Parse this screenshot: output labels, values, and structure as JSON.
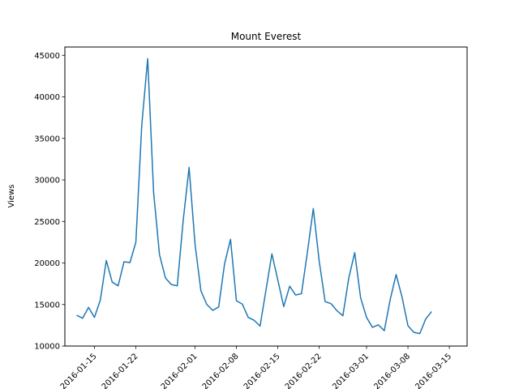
{
  "chart_data": {
    "type": "line",
    "title": "Mount Everest",
    "xlabel": "",
    "ylabel": "Views",
    "grid": false,
    "x_start": "2016-01-12",
    "xlim": [
      "2016-01-10",
      "2016-03-18"
    ],
    "ylim": [
      10000,
      46000
    ],
    "x_ticks": [
      {
        "date": "2016-01-15",
        "label": "2016-01-15"
      },
      {
        "date": "2016-01-22",
        "label": "2016-01-22"
      },
      {
        "date": "2016-02-01",
        "label": "2016-02-01"
      },
      {
        "date": "2016-02-08",
        "label": "2016-02-08"
      },
      {
        "date": "2016-02-15",
        "label": "2016-02-15"
      },
      {
        "date": "2016-02-22",
        "label": "2016-02-22"
      },
      {
        "date": "2016-03-01",
        "label": "2016-03-01"
      },
      {
        "date": "2016-03-08",
        "label": "2016-03-08"
      },
      {
        "date": "2016-03-15",
        "label": "2016-03-15"
      }
    ],
    "y_ticks": [
      {
        "value": 10000,
        "label": "10000"
      },
      {
        "value": 15000,
        "label": "15000"
      },
      {
        "value": 20000,
        "label": "20000"
      },
      {
        "value": 25000,
        "label": "25000"
      },
      {
        "value": 30000,
        "label": "30000"
      },
      {
        "value": 35000,
        "label": "35000"
      },
      {
        "value": 40000,
        "label": "40000"
      },
      {
        "value": 45000,
        "label": "45000"
      }
    ],
    "series": [
      {
        "color": "#1f77b4",
        "values": [
          13700,
          13350,
          14650,
          13450,
          15550,
          20300,
          17700,
          17250,
          20150,
          20050,
          22500,
          36600,
          44600,
          28500,
          21000,
          18200,
          17400,
          17250,
          25100,
          31500,
          22300,
          16650,
          15000,
          14300,
          14700,
          19900,
          22850,
          15450,
          15050,
          13450,
          13100,
          12400,
          16750,
          21100,
          17950,
          14750,
          17200,
          16150,
          16300,
          21300,
          26550,
          20200,
          15350,
          15100,
          14250,
          13650,
          18200,
          21250,
          15800,
          13450,
          12250,
          12550,
          11850,
          15600,
          18600,
          15900,
          12450,
          11650,
          11500,
          13250,
          14150
        ]
      }
    ]
  }
}
